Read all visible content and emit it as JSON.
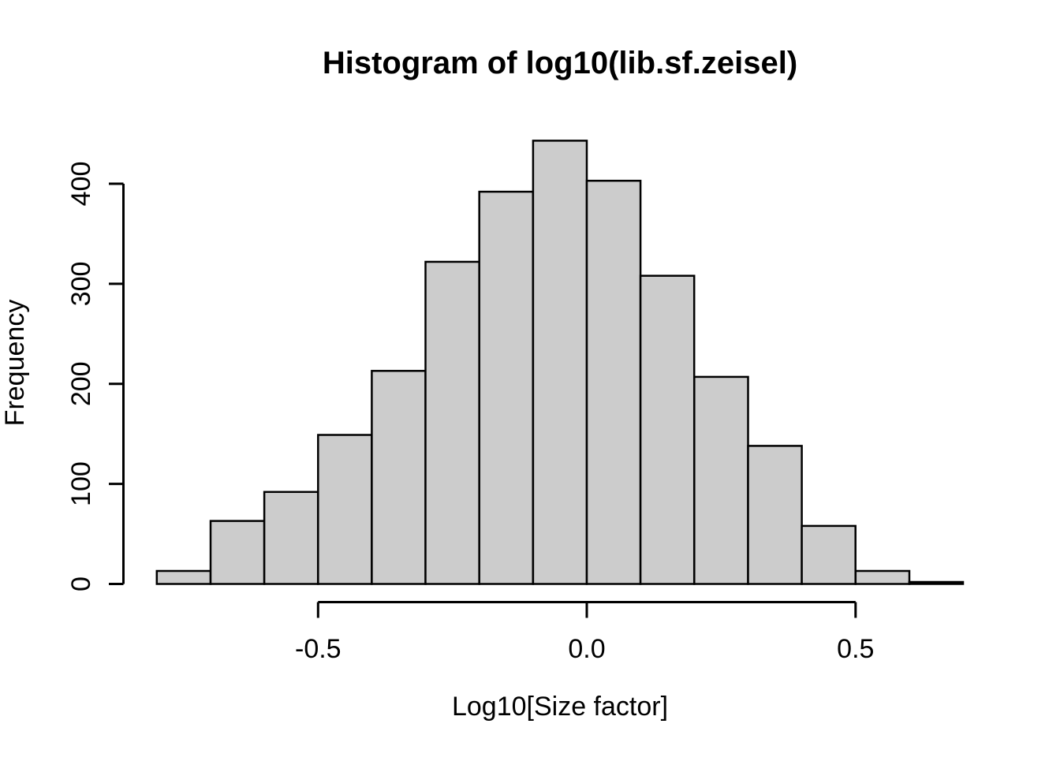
{
  "chart_data": {
    "type": "histogram",
    "title": "Histogram of log10(lib.sf.zeisel)",
    "xlabel": "Log10[Size factor]",
    "ylabel": "Frequency",
    "bin_edges": [
      -0.8,
      -0.7,
      -0.6,
      -0.5,
      -0.4,
      -0.3,
      -0.2,
      -0.1,
      0.0,
      0.1,
      0.2,
      0.3,
      0.4,
      0.5,
      0.6,
      0.7
    ],
    "counts": [
      13,
      63,
      92,
      149,
      213,
      322,
      392,
      443,
      403,
      308,
      207,
      138,
      58,
      13,
      2
    ],
    "x_ticks": [
      {
        "value": -0.5,
        "label": "-0.5"
      },
      {
        "value": 0.0,
        "label": "0.0"
      },
      {
        "value": 0.5,
        "label": "0.5"
      }
    ],
    "y_ticks": [
      {
        "value": 0,
        "label": "0"
      },
      {
        "value": 100,
        "label": "100"
      },
      {
        "value": 200,
        "label": "200"
      },
      {
        "value": 300,
        "label": "300"
      },
      {
        "value": 400,
        "label": "400"
      }
    ],
    "xlim": [
      -0.86,
      0.76
    ],
    "ylim": [
      0,
      460
    ],
    "grid": false,
    "legend": "none",
    "colors": {
      "bar_fill": "#CCCCCC",
      "bar_border": "#000000",
      "axis": "#000000",
      "text": "#000000",
      "background": "#FFFFFF"
    }
  }
}
